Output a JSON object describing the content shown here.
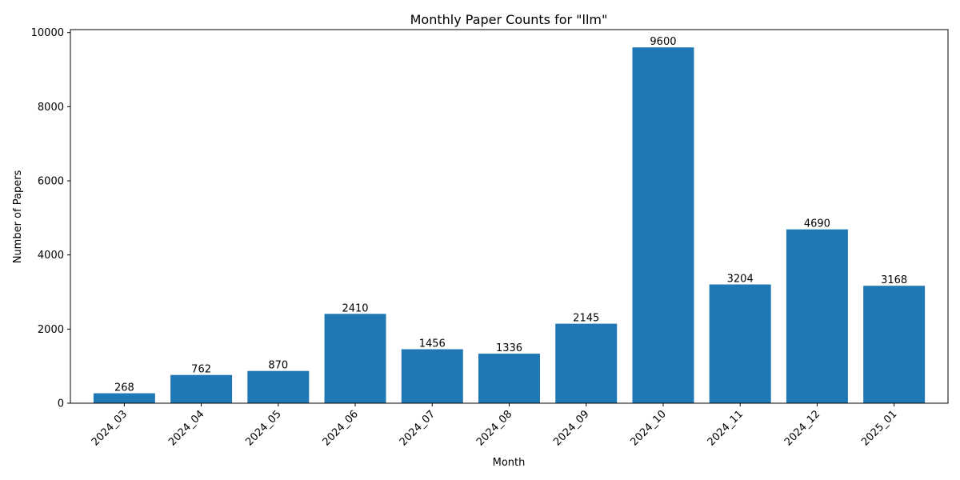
{
  "chart_data": {
    "type": "bar",
    "title": "Monthly Paper Counts for \"llm\"",
    "xlabel": "Month",
    "ylabel": "Number of Papers",
    "categories": [
      "2024_03",
      "2024_04",
      "2024_05",
      "2024_06",
      "2024_07",
      "2024_08",
      "2024_09",
      "2024_10",
      "2024_11",
      "2024_12",
      "2025_01"
    ],
    "values": [
      268,
      762,
      870,
      2410,
      1456,
      1336,
      2145,
      9600,
      3204,
      4690,
      3168
    ],
    "value_labels": [
      "268",
      "762",
      "870",
      "2410",
      "1456",
      "1336",
      "2145",
      "9600",
      "3204",
      "4690",
      "3168"
    ],
    "ylim": [
      0,
      10080
    ],
    "yticks": [
      0,
      2000,
      4000,
      6000,
      8000,
      10000
    ],
    "ytick_labels": [
      "0",
      "2000",
      "4000",
      "6000",
      "8000",
      "10000"
    ],
    "bar_color": "#1f77b4",
    "grid": false,
    "legend": "none"
  }
}
